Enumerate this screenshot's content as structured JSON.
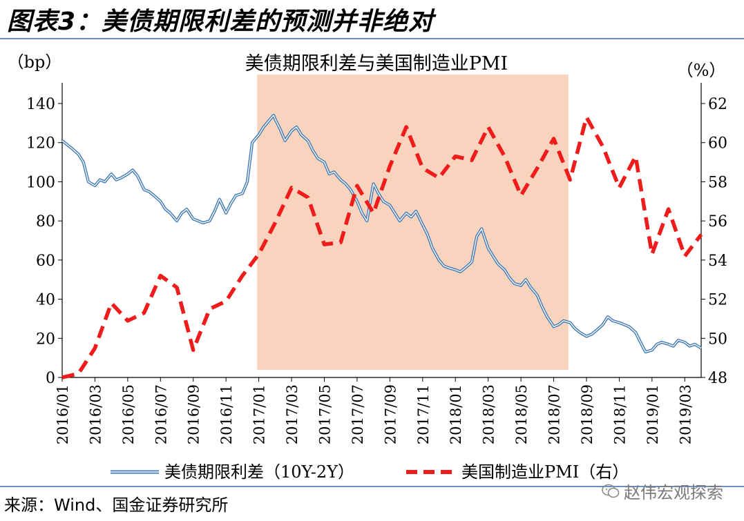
{
  "figure_title": "图表3：美债期限利差的预测并非绝对",
  "source": "来源：Wind、国金证券研究所",
  "watermark": "赵伟宏观探索",
  "chart_data": {
    "type": "line",
    "title": "美债期限利差与美国制造业PMI",
    "y_left_unit": "（bp）",
    "y_right_unit": "（%）",
    "y_left_lim": [
      0,
      140
    ],
    "y_right_lim": [
      48,
      62
    ],
    "y_left_ticks": [
      0,
      20,
      40,
      60,
      80,
      100,
      120,
      140
    ],
    "y_right_ticks": [
      48,
      50,
      52,
      54,
      56,
      58,
      60,
      62
    ],
    "x_tick_labels": [
      "2016/01",
      "2016/03",
      "2016/05",
      "2016/07",
      "2016/09",
      "2016/11",
      "2017/01",
      "2017/03",
      "2017/05",
      "2017/07",
      "2017/09",
      "2017/11",
      "2018/01",
      "2018/03",
      "2018/05",
      "2018/07",
      "2018/09",
      "2018/11",
      "2019/01",
      "2019/03"
    ],
    "x_range_months": [
      0,
      39
    ],
    "shaded_region": {
      "start": "2016/12",
      "end": "2018/07",
      "color": "#f8d3bd"
    },
    "series": [
      {
        "name": "美债期限利差（10Y-2Y）",
        "axis": "left",
        "color": "#3f78b8",
        "style": "double-line",
        "points": [
          [
            0,
            121
          ],
          [
            0.3,
            119
          ],
          [
            0.6,
            117
          ],
          [
            1,
            114
          ],
          [
            1.3,
            110
          ],
          [
            1.6,
            100
          ],
          [
            2,
            98
          ],
          [
            2.3,
            101
          ],
          [
            2.6,
            100
          ],
          [
            3,
            104
          ],
          [
            3.3,
            101
          ],
          [
            3.6,
            102
          ],
          [
            4,
            104
          ],
          [
            4.3,
            106
          ],
          [
            4.6,
            103
          ],
          [
            5,
            96
          ],
          [
            5.3,
            95
          ],
          [
            5.6,
            93
          ],
          [
            6,
            90
          ],
          [
            6.3,
            86
          ],
          [
            6.6,
            84
          ],
          [
            7,
            80
          ],
          [
            7.3,
            84
          ],
          [
            7.6,
            86
          ],
          [
            8,
            81
          ],
          [
            8.3,
            80
          ],
          [
            8.6,
            79
          ],
          [
            9,
            80
          ],
          [
            9.3,
            85
          ],
          [
            9.6,
            91
          ],
          [
            10,
            84
          ],
          [
            10.3,
            89
          ],
          [
            10.6,
            93
          ],
          [
            11,
            94
          ],
          [
            11.3,
            100
          ],
          [
            11.6,
            120
          ],
          [
            12,
            124
          ],
          [
            12.3,
            128
          ],
          [
            12.6,
            131
          ],
          [
            12.9,
            134
          ],
          [
            13,
            132
          ],
          [
            13.3,
            127
          ],
          [
            13.6,
            121
          ],
          [
            14,
            126
          ],
          [
            14.3,
            128
          ],
          [
            14.6,
            124
          ],
          [
            15,
            121
          ],
          [
            15.3,
            116
          ],
          [
            15.6,
            112
          ],
          [
            16,
            110
          ],
          [
            16.3,
            104
          ],
          [
            16.6,
            105
          ],
          [
            17,
            101
          ],
          [
            17.3,
            99
          ],
          [
            17.6,
            96
          ],
          [
            18,
            90
          ],
          [
            18.3,
            84
          ],
          [
            18.6,
            80
          ],
          [
            19,
            99
          ],
          [
            19.3,
            94
          ],
          [
            19.6,
            90
          ],
          [
            20,
            88
          ],
          [
            20.3,
            84
          ],
          [
            20.6,
            80
          ],
          [
            21,
            84
          ],
          [
            21.3,
            82
          ],
          [
            21.6,
            85
          ],
          [
            22,
            78
          ],
          [
            22.3,
            73
          ],
          [
            22.6,
            66
          ],
          [
            23,
            60
          ],
          [
            23.3,
            57
          ],
          [
            23.6,
            56
          ],
          [
            24,
            55
          ],
          [
            24.3,
            54
          ],
          [
            24.6,
            56
          ],
          [
            25,
            59
          ],
          [
            25.3,
            72
          ],
          [
            25.6,
            76
          ],
          [
            26,
            66
          ],
          [
            26.3,
            62
          ],
          [
            26.6,
            58
          ],
          [
            27,
            55
          ],
          [
            27.3,
            51
          ],
          [
            27.6,
            48
          ],
          [
            28,
            47
          ],
          [
            28.3,
            50
          ],
          [
            28.6,
            46
          ],
          [
            29,
            42
          ],
          [
            29.3,
            36
          ],
          [
            29.6,
            31
          ],
          [
            30,
            26
          ],
          [
            30.3,
            27
          ],
          [
            30.6,
            29
          ],
          [
            31,
            28
          ],
          [
            31.3,
            25
          ],
          [
            31.6,
            23
          ],
          [
            32,
            21
          ],
          [
            32.3,
            22
          ],
          [
            32.6,
            24
          ],
          [
            33,
            27
          ],
          [
            33.3,
            31
          ],
          [
            33.6,
            29
          ],
          [
            34,
            28
          ],
          [
            34.3,
            27
          ],
          [
            34.6,
            26
          ],
          [
            35,
            23
          ],
          [
            35.3,
            18
          ],
          [
            35.6,
            13
          ],
          [
            36,
            14
          ],
          [
            36.3,
            17
          ],
          [
            36.6,
            18
          ],
          [
            37,
            17
          ],
          [
            37.3,
            16
          ],
          [
            37.6,
            19
          ],
          [
            38,
            18
          ],
          [
            38.3,
            16
          ],
          [
            38.6,
            17
          ],
          [
            39,
            15
          ]
        ]
      },
      {
        "name": "美国制造业PMI（右）",
        "axis": "right",
        "color": "#ef1c1c",
        "style": "dashed",
        "points": [
          [
            0,
            48.0
          ],
          [
            1,
            48.2
          ],
          [
            2,
            49.5
          ],
          [
            3,
            51.8
          ],
          [
            4,
            50.9
          ],
          [
            5,
            51.3
          ],
          [
            6,
            53.2
          ],
          [
            7,
            52.6
          ],
          [
            8,
            49.4
          ],
          [
            9,
            51.5
          ],
          [
            10,
            51.9
          ],
          [
            11,
            53.2
          ],
          [
            12,
            54.3
          ],
          [
            13,
            55.9
          ],
          [
            14,
            57.7
          ],
          [
            15,
            57.2
          ],
          [
            16,
            54.8
          ],
          [
            17,
            54.9
          ],
          [
            18,
            57.8
          ],
          [
            19,
            56.4
          ],
          [
            20,
            58.8
          ],
          [
            21,
            60.8
          ],
          [
            22,
            58.7
          ],
          [
            23,
            58.2
          ],
          [
            24,
            59.3
          ],
          [
            25,
            59.1
          ],
          [
            26,
            60.8
          ],
          [
            27,
            59.3
          ],
          [
            28,
            57.3
          ],
          [
            29,
            58.7
          ],
          [
            30,
            60.2
          ],
          [
            31,
            58.1
          ],
          [
            32,
            61.3
          ],
          [
            33,
            59.8
          ],
          [
            34,
            57.7
          ],
          [
            35,
            59.3
          ],
          [
            36,
            54.3
          ],
          [
            37,
            56.6
          ],
          [
            38,
            54.2
          ],
          [
            39,
            55.3
          ]
        ]
      }
    ]
  }
}
